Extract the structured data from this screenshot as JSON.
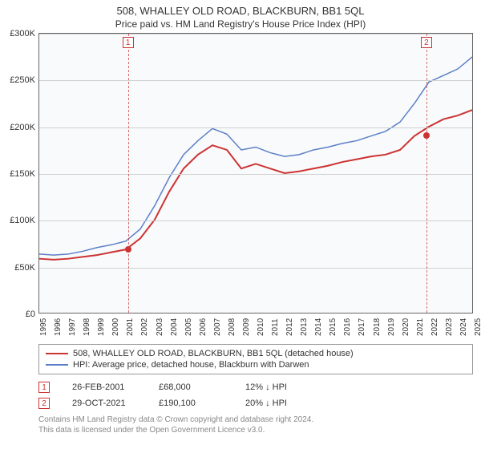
{
  "title": "508, WHALLEY OLD ROAD, BLACKBURN, BB1 5QL",
  "subtitle": "Price paid vs. HM Land Registry's House Price Index (HPI)",
  "chart": {
    "type": "line",
    "background_color": "#f9fafb",
    "grid_color": "#d0d0d0",
    "axis_color": "#666666",
    "ylim": [
      0,
      300000
    ],
    "ytick_step": 50000,
    "yticks": [
      "£0",
      "£50K",
      "£100K",
      "£150K",
      "£200K",
      "£250K",
      "£300K"
    ],
    "x_years": [
      1995,
      1996,
      1997,
      1998,
      1999,
      2000,
      2001,
      2002,
      2003,
      2004,
      2005,
      2006,
      2007,
      2008,
      2009,
      2010,
      2011,
      2012,
      2013,
      2014,
      2015,
      2016,
      2017,
      2018,
      2019,
      2020,
      2021,
      2022,
      2023,
      2024,
      2025
    ],
    "series": [
      {
        "name": "property_price",
        "label": "508, WHALLEY OLD ROAD, BLACKBURN, BB1 5QL (detached house)",
        "color": "#cc3333",
        "line_width": 2,
        "data": [
          [
            1995,
            58000
          ],
          [
            1996,
            57000
          ],
          [
            1997,
            58000
          ],
          [
            1998,
            60000
          ],
          [
            1999,
            62000
          ],
          [
            2000,
            65000
          ],
          [
            2001,
            68000
          ],
          [
            2002,
            80000
          ],
          [
            2003,
            100000
          ],
          [
            2004,
            130000
          ],
          [
            2005,
            155000
          ],
          [
            2006,
            170000
          ],
          [
            2007,
            180000
          ],
          [
            2008,
            175000
          ],
          [
            2009,
            155000
          ],
          [
            2010,
            160000
          ],
          [
            2011,
            155000
          ],
          [
            2012,
            150000
          ],
          [
            2013,
            152000
          ],
          [
            2014,
            155000
          ],
          [
            2015,
            158000
          ],
          [
            2016,
            162000
          ],
          [
            2017,
            165000
          ],
          [
            2018,
            168000
          ],
          [
            2019,
            170000
          ],
          [
            2020,
            175000
          ],
          [
            2021,
            190000
          ],
          [
            2022,
            200000
          ],
          [
            2023,
            208000
          ],
          [
            2024,
            212000
          ],
          [
            2025,
            218000
          ]
        ]
      },
      {
        "name": "hpi",
        "label": "HPI: Average price, detached house, Blackburn with Darwen",
        "color": "#5b7fc7",
        "line_width": 1.5,
        "data": [
          [
            1995,
            63000
          ],
          [
            1996,
            62000
          ],
          [
            1997,
            63000
          ],
          [
            1998,
            66000
          ],
          [
            1999,
            70000
          ],
          [
            2000,
            73000
          ],
          [
            2001,
            77000
          ],
          [
            2002,
            90000
          ],
          [
            2003,
            115000
          ],
          [
            2004,
            145000
          ],
          [
            2005,
            170000
          ],
          [
            2006,
            185000
          ],
          [
            2007,
            198000
          ],
          [
            2008,
            192000
          ],
          [
            2009,
            175000
          ],
          [
            2010,
            178000
          ],
          [
            2011,
            172000
          ],
          [
            2012,
            168000
          ],
          [
            2013,
            170000
          ],
          [
            2014,
            175000
          ],
          [
            2015,
            178000
          ],
          [
            2016,
            182000
          ],
          [
            2017,
            185000
          ],
          [
            2018,
            190000
          ],
          [
            2019,
            195000
          ],
          [
            2020,
            205000
          ],
          [
            2021,
            225000
          ],
          [
            2022,
            248000
          ],
          [
            2023,
            255000
          ],
          [
            2024,
            262000
          ],
          [
            2025,
            275000
          ]
        ]
      }
    ],
    "markers": [
      {
        "n": "1",
        "year": 2001.15,
        "price": 68000
      },
      {
        "n": "2",
        "year": 2021.83,
        "price": 190100
      }
    ]
  },
  "legend": {
    "s1": {
      "color": "#cc3333",
      "label": "508, WHALLEY OLD ROAD, BLACKBURN, BB1 5QL (detached house)"
    },
    "s2": {
      "color": "#5b7fc7",
      "label": "HPI: Average price, detached house, Blackburn with Darwen"
    }
  },
  "transactions": [
    {
      "n": "1",
      "date": "26-FEB-2001",
      "price": "£68,000",
      "delta": "12% ↓ HPI"
    },
    {
      "n": "2",
      "date": "29-OCT-2021",
      "price": "£190,100",
      "delta": "20% ↓ HPI"
    }
  ],
  "footer": {
    "l1": "Contains HM Land Registry data © Crown copyright and database right 2024.",
    "l2": "This data is licensed under the Open Government Licence v3.0."
  }
}
